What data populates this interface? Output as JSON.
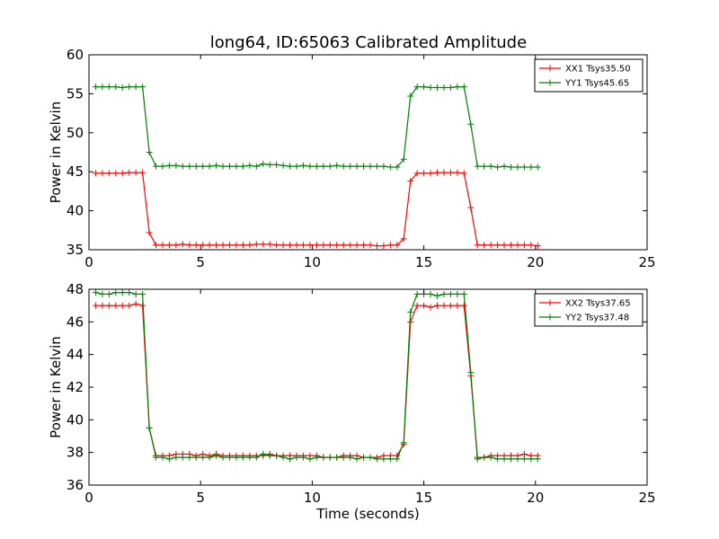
{
  "figure": {
    "title": "long64, ID:65063 Calibrated Amplitude"
  },
  "chart_data": [
    {
      "type": "line",
      "title": "long64, ID:65063 Calibrated Amplitude",
      "xlabel": "",
      "ylabel": "Power in Kelvin",
      "xlim": [
        0,
        25
      ],
      "ylim": [
        35,
        60
      ],
      "xticks": [
        "0",
        "5",
        "10",
        "15",
        "20",
        "25"
      ],
      "yticks": [
        "35",
        "40",
        "45",
        "50",
        "55",
        "60"
      ],
      "grid": false,
      "legend": "top-right",
      "marker": "+",
      "series": [
        {
          "name": "XX1 Tsys35.50",
          "color": "#ff0000",
          "x": [
            0.3,
            0.6,
            0.9,
            1.2,
            1.5,
            1.8,
            2.1,
            2.4,
            2.7,
            3.0,
            3.3,
            3.6,
            3.9,
            4.2,
            4.5,
            4.8,
            5.1,
            5.4,
            5.7,
            6.0,
            6.3,
            6.6,
            6.9,
            7.2,
            7.5,
            7.8,
            8.1,
            8.4,
            8.7,
            9.0,
            9.3,
            9.6,
            9.9,
            10.2,
            10.5,
            10.8,
            11.1,
            11.4,
            11.7,
            12.0,
            12.3,
            12.6,
            12.9,
            13.2,
            13.5,
            13.8,
            14.1,
            14.4,
            14.7,
            15.0,
            15.3,
            15.6,
            15.9,
            16.2,
            16.5,
            16.8,
            17.1,
            17.4,
            17.7,
            18.0,
            18.3,
            18.6,
            18.9,
            19.2,
            19.5,
            19.8,
            20.1
          ],
          "y": [
            44.8,
            44.8,
            44.8,
            44.8,
            44.8,
            44.9,
            44.9,
            44.9,
            37.2,
            35.6,
            35.6,
            35.6,
            35.6,
            35.7,
            35.6,
            35.6,
            35.6,
            35.6,
            35.6,
            35.6,
            35.6,
            35.6,
            35.6,
            35.6,
            35.7,
            35.7,
            35.7,
            35.6,
            35.6,
            35.6,
            35.6,
            35.6,
            35.6,
            35.6,
            35.6,
            35.6,
            35.6,
            35.6,
            35.6,
            35.6,
            35.6,
            35.6,
            35.5,
            35.5,
            35.6,
            35.6,
            36.4,
            43.8,
            44.8,
            44.8,
            44.8,
            44.9,
            44.9,
            44.9,
            44.9,
            44.8,
            40.4,
            35.6,
            35.6,
            35.6,
            35.6,
            35.6,
            35.6,
            35.6,
            35.6,
            35.6,
            35.5
          ]
        },
        {
          "name": "YY1 Tsys45.65",
          "color": "#008000",
          "x": [
            0.3,
            0.6,
            0.9,
            1.2,
            1.5,
            1.8,
            2.1,
            2.4,
            2.7,
            3.0,
            3.3,
            3.6,
            3.9,
            4.2,
            4.5,
            4.8,
            5.1,
            5.4,
            5.7,
            6.0,
            6.3,
            6.6,
            6.9,
            7.2,
            7.5,
            7.8,
            8.1,
            8.4,
            8.7,
            9.0,
            9.3,
            9.6,
            9.9,
            10.2,
            10.5,
            10.8,
            11.1,
            11.4,
            11.7,
            12.0,
            12.3,
            12.6,
            12.9,
            13.2,
            13.5,
            13.8,
            14.1,
            14.4,
            14.7,
            15.0,
            15.3,
            15.6,
            15.9,
            16.2,
            16.5,
            16.8,
            17.1,
            17.4,
            17.7,
            18.0,
            18.3,
            18.6,
            18.9,
            19.2,
            19.5,
            19.8,
            20.1
          ],
          "y": [
            55.9,
            55.9,
            55.9,
            55.9,
            55.8,
            55.9,
            55.9,
            55.9,
            47.5,
            45.7,
            45.7,
            45.8,
            45.8,
            45.7,
            45.7,
            45.7,
            45.7,
            45.7,
            45.8,
            45.7,
            45.7,
            45.7,
            45.7,
            45.8,
            45.7,
            46.0,
            45.9,
            45.9,
            45.8,
            45.7,
            45.7,
            45.8,
            45.7,
            45.7,
            45.7,
            45.7,
            45.8,
            45.7,
            45.7,
            45.7,
            45.7,
            45.7,
            45.7,
            45.7,
            45.6,
            45.6,
            46.6,
            54.7,
            55.9,
            55.9,
            55.8,
            55.8,
            55.8,
            55.8,
            55.9,
            55.9,
            51.1,
            45.7,
            45.7,
            45.7,
            45.6,
            45.7,
            45.6,
            45.6,
            45.6,
            45.6,
            45.6
          ]
        }
      ]
    },
    {
      "type": "line",
      "title": "",
      "xlabel": "Time (seconds)",
      "ylabel": "Power in Kelvin",
      "xlim": [
        0,
        25
      ],
      "ylim": [
        36,
        48
      ],
      "xticks": [
        "0",
        "5",
        "10",
        "15",
        "20",
        "25"
      ],
      "yticks": [
        "36",
        "38",
        "40",
        "42",
        "44",
        "46",
        "48"
      ],
      "grid": false,
      "legend": "top-right",
      "marker": "+",
      "series": [
        {
          "name": "XX2 Tsys37.65",
          "color": "#ff0000",
          "x": [
            0.3,
            0.6,
            0.9,
            1.2,
            1.5,
            1.8,
            2.1,
            2.4,
            2.7,
            3.0,
            3.3,
            3.6,
            3.9,
            4.2,
            4.5,
            4.8,
            5.1,
            5.4,
            5.7,
            6.0,
            6.3,
            6.6,
            6.9,
            7.2,
            7.5,
            7.8,
            8.1,
            8.4,
            8.7,
            9.0,
            9.3,
            9.6,
            9.9,
            10.2,
            10.5,
            10.8,
            11.1,
            11.4,
            11.7,
            12.0,
            12.3,
            12.6,
            12.9,
            13.2,
            13.5,
            13.8,
            14.1,
            14.4,
            14.7,
            15.0,
            15.3,
            15.6,
            15.9,
            16.2,
            16.5,
            16.8,
            17.1,
            17.4,
            17.7,
            18.0,
            18.3,
            18.6,
            18.9,
            19.2,
            19.5,
            19.8,
            20.1
          ],
          "y": [
            47.0,
            47.0,
            47.0,
            47.0,
            47.0,
            47.0,
            47.1,
            47.0,
            39.5,
            37.8,
            37.8,
            37.8,
            37.9,
            37.9,
            37.9,
            37.8,
            37.9,
            37.8,
            37.9,
            37.8,
            37.8,
            37.8,
            37.8,
            37.8,
            37.8,
            37.8,
            37.9,
            37.8,
            37.8,
            37.8,
            37.8,
            37.8,
            37.8,
            37.8,
            37.7,
            37.7,
            37.7,
            37.8,
            37.8,
            37.8,
            37.7,
            37.7,
            37.7,
            37.8,
            37.8,
            37.8,
            38.5,
            46.0,
            47.0,
            47.0,
            46.9,
            47.0,
            47.0,
            47.0,
            47.0,
            47.0,
            42.7,
            37.7,
            37.7,
            37.8,
            37.8,
            37.8,
            37.8,
            37.8,
            37.9,
            37.8,
            37.8
          ]
        },
        {
          "name": "YY2 Tsys37.48",
          "color": "#008000",
          "x": [
            0.3,
            0.6,
            0.9,
            1.2,
            1.5,
            1.8,
            2.1,
            2.4,
            2.7,
            3.0,
            3.3,
            3.6,
            3.9,
            4.2,
            4.5,
            4.8,
            5.1,
            5.4,
            5.7,
            6.0,
            6.3,
            6.6,
            6.9,
            7.2,
            7.5,
            7.8,
            8.1,
            8.4,
            8.7,
            9.0,
            9.3,
            9.6,
            9.9,
            10.2,
            10.5,
            10.8,
            11.1,
            11.4,
            11.7,
            12.0,
            12.3,
            12.6,
            12.9,
            13.2,
            13.5,
            13.8,
            14.1,
            14.4,
            14.7,
            15.0,
            15.3,
            15.6,
            15.9,
            16.2,
            16.5,
            16.8,
            17.1,
            17.4,
            17.7,
            18.0,
            18.3,
            18.6,
            18.9,
            19.2,
            19.5,
            19.8,
            20.1
          ],
          "y": [
            47.8,
            47.7,
            47.7,
            47.8,
            47.8,
            47.8,
            47.7,
            47.7,
            39.5,
            37.7,
            37.7,
            37.6,
            37.7,
            37.7,
            37.7,
            37.7,
            37.7,
            37.7,
            37.8,
            37.7,
            37.7,
            37.7,
            37.7,
            37.7,
            37.7,
            37.9,
            37.8,
            37.8,
            37.7,
            37.6,
            37.7,
            37.7,
            37.6,
            37.7,
            37.7,
            37.7,
            37.7,
            37.7,
            37.7,
            37.6,
            37.7,
            37.7,
            37.6,
            37.6,
            37.6,
            37.6,
            38.6,
            46.6,
            47.7,
            47.7,
            47.7,
            47.6,
            47.7,
            47.7,
            47.7,
            47.7,
            42.9,
            37.6,
            37.7,
            37.7,
            37.6,
            37.6,
            37.6,
            37.6,
            37.6,
            37.6,
            37.6
          ]
        }
      ]
    }
  ]
}
